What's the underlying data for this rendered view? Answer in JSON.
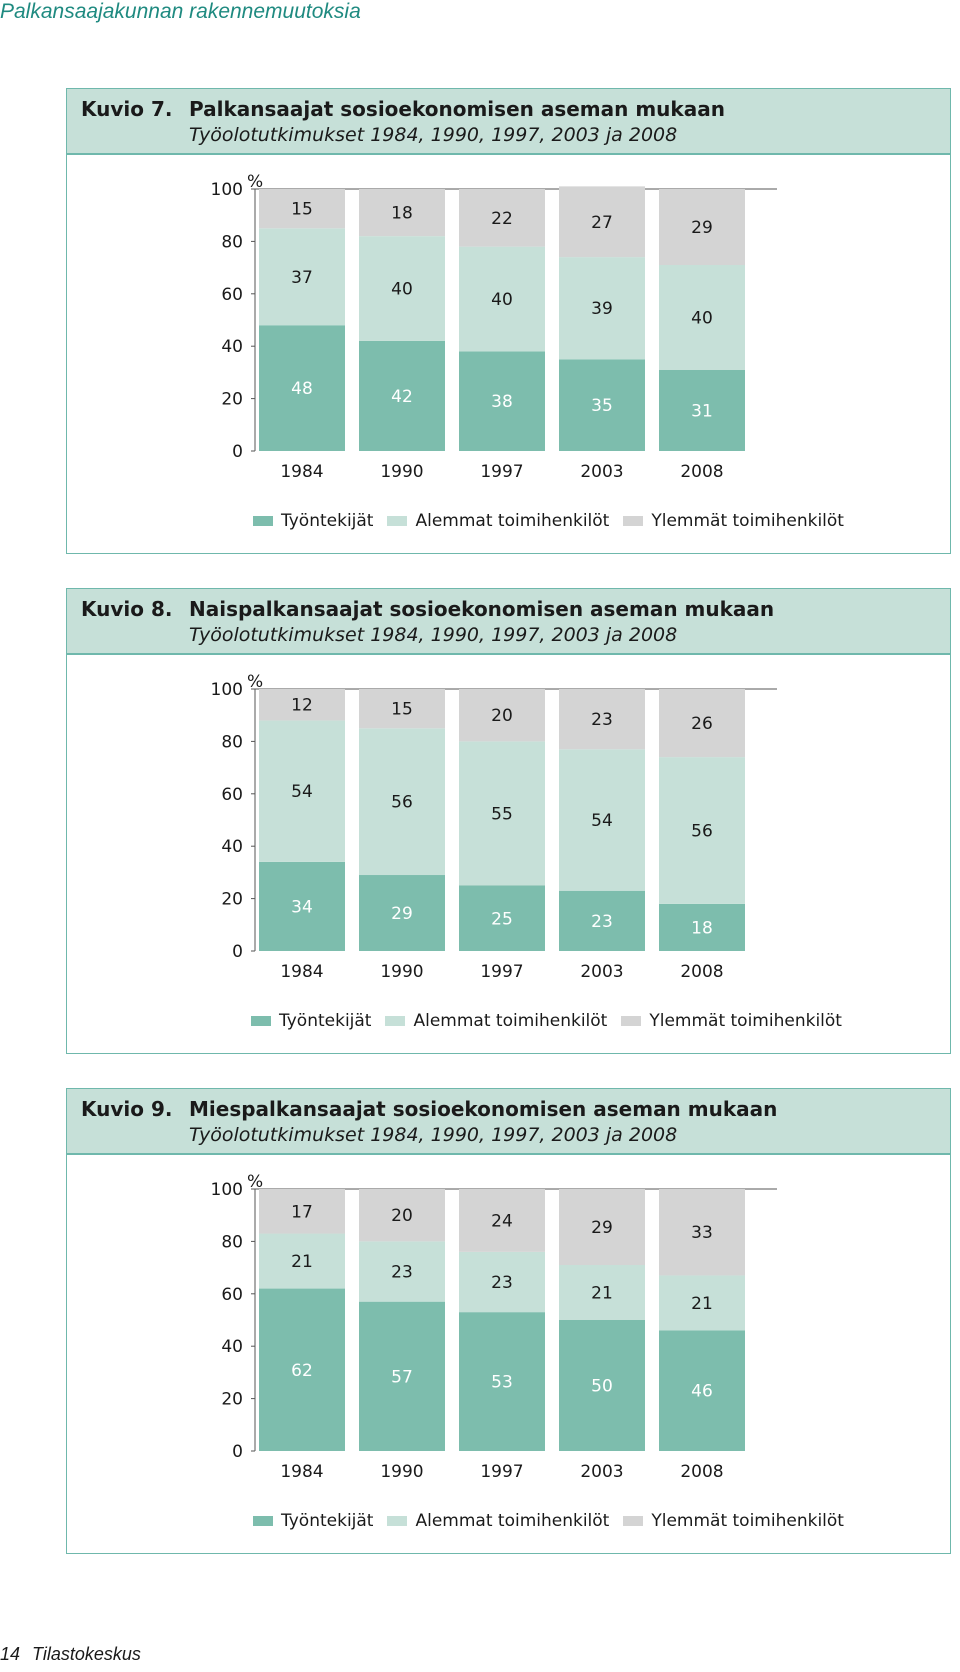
{
  "page": {
    "running_head": "Palkansaajakunnan rakennemuutoksia",
    "footer_number": "14",
    "footer_text": "Tilastokeskus"
  },
  "colors": {
    "tyontekijat": "#7dbdad",
    "alemmat": "#c6e0d8",
    "ylemmat": "#d4d4d4"
  },
  "figures": [
    {
      "number": "Kuvio 7.",
      "title": "Palkansaajat sosioekonomisen aseman mukaan",
      "subtitle": "Työolotutkimukset 1984, 1990, 1997, 2003 ja 2008",
      "legend": [
        "Työntekijät",
        "Alemmat toimihenkilöt",
        "Ylemmät toimihenkilöt"
      ]
    },
    {
      "number": "Kuvio 8.",
      "title": "Naispalkansaajat sosioekonomisen aseman mukaan",
      "subtitle": "Työolotutkimukset 1984, 1990, 1997, 2003 ja 2008",
      "legend": [
        "Työntekijät",
        "Alemmat toimihenkilöt",
        "Ylemmät toimihenkilöt"
      ]
    },
    {
      "number": "Kuvio 9.",
      "title": "Miespalkansaajat sosioekonomisen aseman mukaan",
      "subtitle": "Työolotutkimukset 1984, 1990, 1997, 2003 ja 2008",
      "legend": [
        "Työntekijät",
        "Alemmat toimihenkilöt",
        "Ylemmät toimihenkilöt"
      ]
    }
  ],
  "chart_data": [
    {
      "type": "bar",
      "stacked": true,
      "title": "Palkansaajat sosioekonomisen aseman mukaan",
      "ylabel": "%",
      "ylim": [
        0,
        100
      ],
      "yticks": [
        "0",
        "20",
        "40",
        "60",
        "80",
        "100"
      ],
      "categories": [
        "1984",
        "1990",
        "1997",
        "2003",
        "2008"
      ],
      "series": [
        {
          "name": "Työntekijät",
          "values": [
            48,
            42,
            38,
            35,
            31
          ]
        },
        {
          "name": "Alemmat toimihenkilöt",
          "values": [
            37,
            40,
            40,
            39,
            40
          ]
        },
        {
          "name": "Ylemmät toimihenkilöt",
          "values": [
            15,
            18,
            22,
            27,
            29
          ]
        }
      ]
    },
    {
      "type": "bar",
      "stacked": true,
      "title": "Naispalkansaajat sosioekonomisen aseman mukaan",
      "ylabel": "%",
      "ylim": [
        0,
        100
      ],
      "yticks": [
        "0",
        "20",
        "40",
        "60",
        "80",
        "100"
      ],
      "categories": [
        "1984",
        "1990",
        "1997",
        "2003",
        "2008"
      ],
      "series": [
        {
          "name": "Työntekijät",
          "values": [
            34,
            29,
            25,
            23,
            18
          ]
        },
        {
          "name": "Alemmat toimihenkilöt",
          "values": [
            54,
            56,
            55,
            54,
            56
          ]
        },
        {
          "name": "Ylemmät toimihenkilöt",
          "values": [
            12,
            15,
            20,
            23,
            26
          ]
        }
      ]
    },
    {
      "type": "bar",
      "stacked": true,
      "title": "Miespalkansaajat sosioekonomisen aseman mukaan",
      "ylabel": "%",
      "ylim": [
        0,
        100
      ],
      "yticks": [
        "0",
        "20",
        "40",
        "60",
        "80",
        "100"
      ],
      "categories": [
        "1984",
        "1990",
        "1997",
        "2003",
        "2008"
      ],
      "series": [
        {
          "name": "Työntekijät",
          "values": [
            62,
            57,
            53,
            50,
            46
          ]
        },
        {
          "name": "Alemmat toimihenkilöt",
          "values": [
            21,
            23,
            23,
            21,
            21
          ]
        },
        {
          "name": "Ylemmät toimihenkilöt",
          "values": [
            17,
            20,
            24,
            29,
            33
          ]
        }
      ]
    }
  ]
}
